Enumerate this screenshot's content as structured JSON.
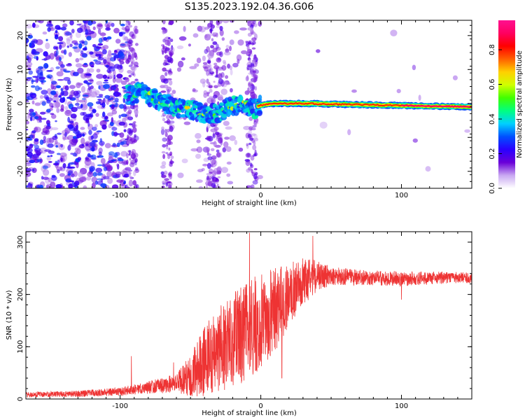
{
  "title": "S135.2023.192.04.36.G06",
  "chart_data": [
    {
      "type": "heatmap",
      "xlabel": "Height of straight line (km)",
      "ylabel": "Frequency (Hz)",
      "xlim": [
        -167,
        150
      ],
      "ylim": [
        -25,
        24.5
      ],
      "xticks": [
        -100,
        0,
        100
      ],
      "yticks": [
        -20,
        -10,
        0,
        10,
        20
      ],
      "colorbar": {
        "label": "Normalized spectral amplitude",
        "range": [
          0,
          0.97
        ],
        "ticks": [
          0.0,
          0.2,
          0.4,
          0.6,
          0.8
        ],
        "tick_labels": [
          "0.0",
          "0.2",
          "0.4",
          "0.6",
          "0.8"
        ],
        "colors": [
          "#ffffff",
          "#c9a8f2",
          "#6a00d8",
          "#2a00ff",
          "#0050ff",
          "#00d0ff",
          "#00ff80",
          "#40ff00",
          "#d0ff00",
          "#ffd000",
          "#ff6000",
          "#ff0000",
          "#ff0060",
          "#ff1090"
        ]
      },
      "ridge": [
        {
          "x": -92,
          "y": 2.5
        },
        {
          "x": -85,
          "y": 3.5
        },
        {
          "x": -78,
          "y": 2.0
        },
        {
          "x": -70,
          "y": 0.5
        },
        {
          "x": -62,
          "y": -1.0
        },
        {
          "x": -55,
          "y": -1.5
        },
        {
          "x": -48,
          "y": -2.0
        },
        {
          "x": -40,
          "y": -3.0
        },
        {
          "x": -32,
          "y": -3.0
        },
        {
          "x": -25,
          "y": -1.5
        },
        {
          "x": -18,
          "y": -0.5
        },
        {
          "x": -10,
          "y": -0.5
        },
        {
          "x": -5,
          "y": -1.5
        },
        {
          "x": 0,
          "y": -0.5
        },
        {
          "x": 10,
          "y": 0.0
        },
        {
          "x": 30,
          "y": 0.0
        },
        {
          "x": 60,
          "y": -0.3
        },
        {
          "x": 90,
          "y": -0.5
        },
        {
          "x": 120,
          "y": -0.8
        },
        {
          "x": 150,
          "y": -1.0
        }
      ]
    },
    {
      "type": "line",
      "xlabel": "Height of straight line (km)",
      "ylabel": "SNR (10 * v/v)",
      "xlim": [
        -167,
        150
      ],
      "ylim": [
        0,
        320
      ],
      "xticks": [
        -100,
        0,
        100
      ],
      "yticks": [
        0,
        100,
        200,
        300
      ],
      "color": "#ee3333",
      "envelope": [
        {
          "x": -167,
          "base": 8,
          "spread": 5
        },
        {
          "x": -130,
          "base": 10,
          "spread": 6
        },
        {
          "x": -100,
          "base": 14,
          "spread": 8
        },
        {
          "x": -80,
          "base": 22,
          "spread": 12
        },
        {
          "x": -60,
          "base": 30,
          "spread": 18
        },
        {
          "x": -50,
          "base": 45,
          "spread": 40
        },
        {
          "x": -40,
          "base": 70,
          "spread": 70
        },
        {
          "x": -30,
          "base": 95,
          "spread": 80
        },
        {
          "x": -20,
          "base": 110,
          "spread": 90
        },
        {
          "x": -10,
          "base": 130,
          "spread": 100
        },
        {
          "x": 0,
          "base": 150,
          "spread": 90
        },
        {
          "x": 10,
          "base": 170,
          "spread": 80
        },
        {
          "x": 20,
          "base": 200,
          "spread": 60
        },
        {
          "x": 30,
          "base": 225,
          "spread": 45
        },
        {
          "x": 40,
          "base": 235,
          "spread": 30
        },
        {
          "x": 50,
          "base": 235,
          "spread": 18
        },
        {
          "x": 70,
          "base": 233,
          "spread": 15
        },
        {
          "x": 100,
          "base": 230,
          "spread": 14
        },
        {
          "x": 130,
          "base": 232,
          "spread": 12
        },
        {
          "x": 150,
          "base": 232,
          "spread": 10
        }
      ],
      "peaks": [
        {
          "x": -8,
          "y": 318
        },
        {
          "x": 37,
          "y": 312
        },
        {
          "x": -92,
          "y": 82
        },
        {
          "x": -62,
          "y": 70
        },
        {
          "x": 100,
          "y": 190
        },
        {
          "x": 15,
          "y": 40
        }
      ]
    }
  ]
}
